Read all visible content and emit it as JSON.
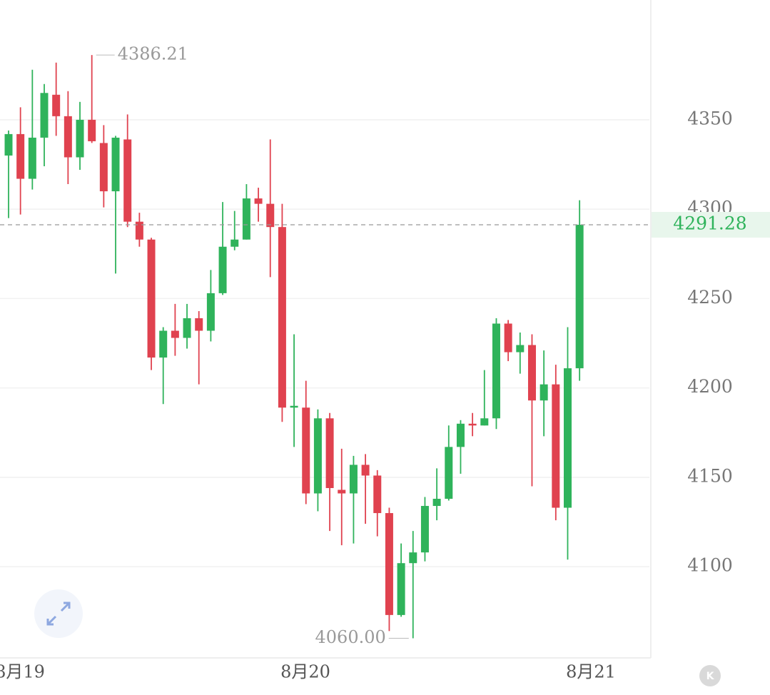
{
  "chart_data": {
    "type": "candlestick",
    "open": [
      4330,
      4342,
      4317,
      4340,
      4364,
      4352,
      4329,
      4350,
      4337,
      4310,
      4339,
      4293,
      4283,
      4217,
      4232,
      4228,
      4239,
      4232,
      4253,
      4279,
      4283,
      4306,
      4303,
      4290,
      4189,
      4189,
      4141,
      4183,
      4143,
      4141,
      4157,
      4151,
      4130,
      4073,
      4102,
      4108,
      4134,
      4138,
      4167,
      4180,
      4179,
      4183,
      4236,
      4220,
      4224,
      4193,
      4202,
      4133,
      4211
    ],
    "high": [
      4344,
      4357,
      4378,
      4370,
      4382,
      4366,
      4360,
      4386.21,
      4347,
      4341,
      4353,
      4298,
      4284,
      4234,
      4247,
      4247,
      4243,
      4266,
      4304,
      4299,
      4314,
      4312,
      4339,
      4303,
      4230,
      4204,
      4188,
      4186,
      4166,
      4162,
      4163,
      4154,
      4133,
      4113,
      4120,
      4139,
      4155,
      4179,
      4182,
      4186,
      4210,
      4239,
      4238,
      4231,
      4230,
      4221,
      4213,
      4234,
      4305
    ],
    "low": [
      4295,
      4297,
      4311,
      4324,
      4341,
      4314,
      4322,
      4337,
      4301,
      4264,
      4290,
      4279,
      4210,
      4191,
      4218,
      4222,
      4202,
      4226,
      4252,
      4277,
      4283,
      4293,
      4262,
      4181,
      4167,
      4135,
      4131,
      4120,
      4112,
      4113,
      4124,
      4117,
      4064,
      4072,
      4060,
      4103,
      4126,
      4137,
      4152,
      4173,
      4179,
      4177,
      4215,
      4208,
      4145,
      4173,
      4126,
      4104,
      4204
    ],
    "close": [
      4342,
      4317,
      4340,
      4365,
      4352,
      4329,
      4350,
      4338,
      4310,
      4340,
      4293,
      4283,
      4217,
      4232,
      4228,
      4239,
      4232,
      4253,
      4279,
      4283,
      4306,
      4303,
      4290,
      4189,
      4190,
      4141,
      4183,
      4144,
      4141,
      4157,
      4151,
      4130,
      4073,
      4102,
      4108,
      4134,
      4138,
      4167,
      4180,
      4179,
      4183,
      4236,
      4220,
      4224,
      4193,
      4202,
      4133,
      4211,
      4291.28
    ],
    "up_color": "#2fb35b",
    "down_color": "#e0424f",
    "ylim": [
      4049,
      4417
    ],
    "yticks": [
      4100,
      4150,
      4200,
      4250,
      4300,
      4350
    ],
    "grid": true,
    "x_axis_labels": [
      "8月19",
      "8月20",
      "8月21"
    ],
    "extreme_labels": {
      "high": "4386.21",
      "low": "4060.00"
    },
    "last_price": {
      "value": 4291.28,
      "label": "4291.28"
    },
    "k_button": "K"
  }
}
